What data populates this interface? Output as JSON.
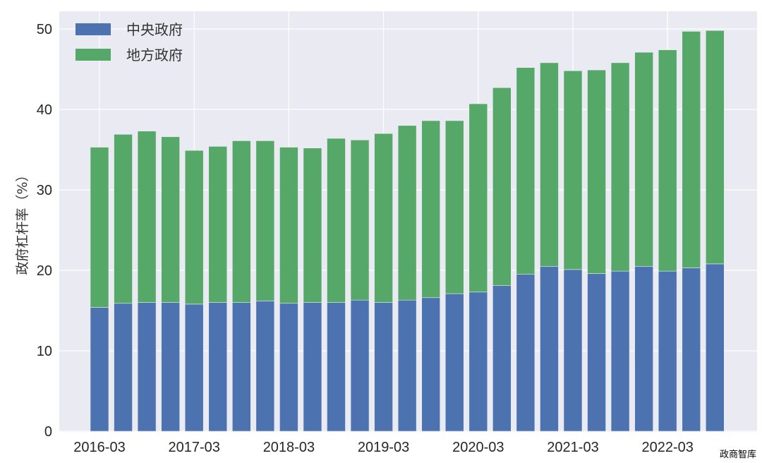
{
  "chart_data": {
    "type": "bar",
    "stacked": true,
    "title": "",
    "xlabel": "",
    "ylabel": "政府杠杆率（%）",
    "ylim": [
      0,
      52
    ],
    "yticks": [
      0,
      10,
      20,
      30,
      40,
      50
    ],
    "grid": true,
    "legend_position": "top-left",
    "categories": [
      "2016-03",
      "2016-06",
      "2016-09",
      "2016-12",
      "2017-03",
      "2017-06",
      "2017-09",
      "2017-12",
      "2018-03",
      "2018-06",
      "2018-09",
      "2018-12",
      "2019-03",
      "2019-06",
      "2019-09",
      "2019-12",
      "2020-03",
      "2020-06",
      "2020-09",
      "2020-12",
      "2021-03",
      "2021-06",
      "2021-09",
      "2021-12",
      "2022-03",
      "2022-06",
      "2022-09"
    ],
    "xtick_labels": [
      "2016-03",
      "2017-03",
      "2018-03",
      "2019-03",
      "2020-03",
      "2021-03",
      "2022-03"
    ],
    "series": [
      {
        "name": "中央政府",
        "color": "#4c72b0",
        "values": [
          15.4,
          15.9,
          16.0,
          16.0,
          15.8,
          16.0,
          16.0,
          16.2,
          15.9,
          16.0,
          16.0,
          16.3,
          16.0,
          16.3,
          16.6,
          17.1,
          17.3,
          18.1,
          19.5,
          20.5,
          20.1,
          19.6,
          19.9,
          20.5,
          19.9,
          20.3,
          20.8
        ]
      },
      {
        "name": "地方政府",
        "color": "#55a868",
        "values": [
          19.9,
          21.0,
          21.3,
          20.6,
          19.1,
          19.4,
          20.1,
          19.9,
          19.4,
          19.2,
          20.4,
          19.9,
          21.0,
          21.7,
          22.0,
          21.5,
          23.4,
          24.6,
          25.7,
          25.3,
          24.7,
          25.3,
          25.9,
          26.6,
          27.5,
          29.4,
          29.0
        ]
      }
    ]
  },
  "watermark": "政商智库"
}
